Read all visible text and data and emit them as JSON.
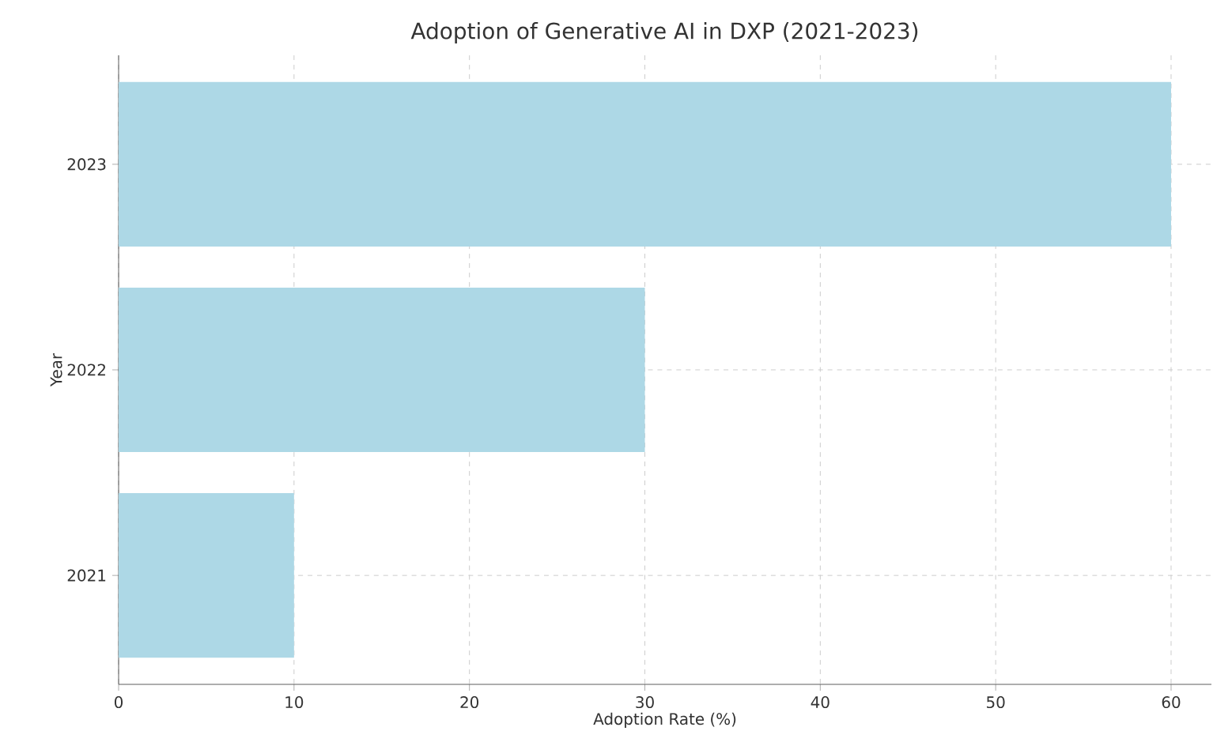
{
  "chart_data": {
    "type": "bar",
    "orientation": "horizontal",
    "title": "Adoption of Generative AI in DXP (2021-2023)",
    "xlabel": "Adoption Rate (%)",
    "ylabel": "Year",
    "categories": [
      "2023",
      "2022",
      "2021"
    ],
    "values": [
      60,
      30,
      10
    ],
    "color": "#add8e6",
    "xlim": [
      0,
      62.3
    ],
    "xticks": [
      0,
      10,
      20,
      30,
      40,
      50,
      60
    ],
    "grid": true
  }
}
